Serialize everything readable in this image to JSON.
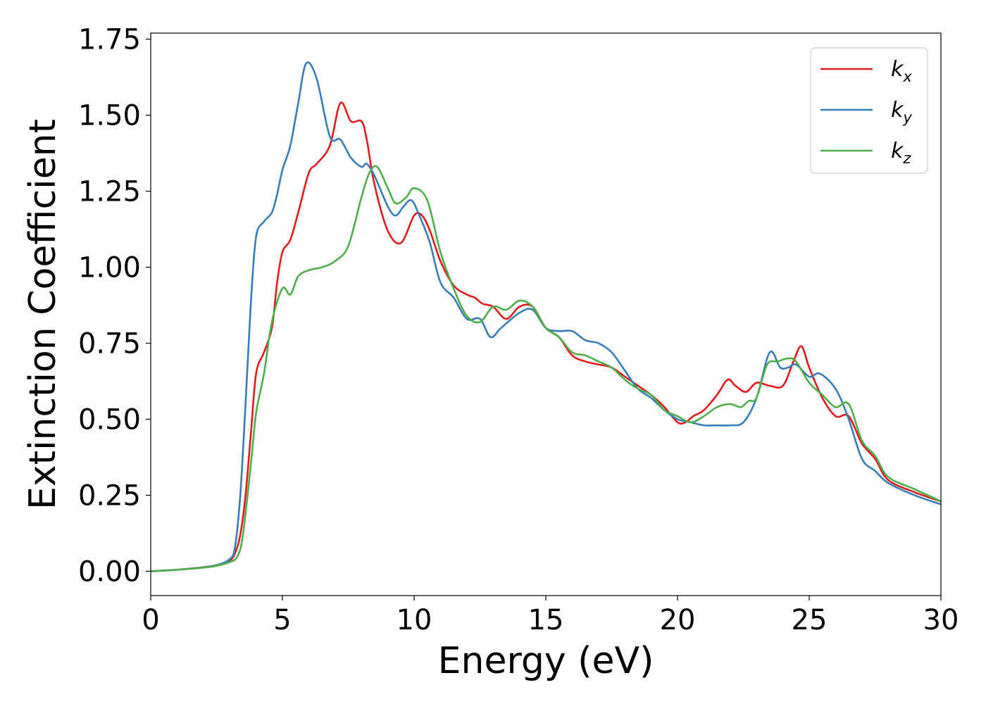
{
  "colors": {
    "kx": "#e41a1c",
    "ky": "#377eb8",
    "kz": "#4daf4a"
  },
  "chart_data": {
    "type": "line",
    "title": "",
    "xlabel": "Energy (eV)",
    "ylabel": "Extinction Coefficient",
    "xlim": [
      0,
      30
    ],
    "ylim": [
      -0.08,
      1.77
    ],
    "xticks": [
      0,
      5,
      10,
      15,
      20,
      25,
      30
    ],
    "xtick_labels": [
      "0",
      "5",
      "10",
      "15",
      "20",
      "25",
      "30"
    ],
    "yticks": [
      0,
      0.25,
      0.5,
      0.75,
      1.0,
      1.25,
      1.5,
      1.75
    ],
    "ytick_labels": [
      "0.00",
      "0.25",
      "0.50",
      "0.75",
      "1.00",
      "1.25",
      "1.50",
      "1.75"
    ],
    "grid": false,
    "legend_position": "top-right",
    "series": [
      {
        "name": "kx",
        "label_base": "k",
        "label_sub": "x",
        "color": "#e41a1c",
        "x": [
          0,
          1,
          2,
          2.5,
          3,
          3.2,
          3.4,
          3.6,
          3.8,
          4,
          4.3,
          4.6,
          4.8,
          5,
          5.3,
          5.6,
          6,
          6.3,
          6.8,
          7.2,
          7.6,
          8,
          8.2,
          8.5,
          9,
          9.5,
          10,
          10.3,
          10.6,
          11,
          11.5,
          12,
          12.3,
          12.6,
          13,
          13.5,
          14,
          14.5,
          15,
          15.5,
          16,
          16.5,
          17,
          17.5,
          18,
          18.5,
          19,
          19.5,
          20,
          20.3,
          20.6,
          21,
          21.5,
          21.9,
          22.2,
          22.6,
          23,
          23.5,
          24,
          24.4,
          24.7,
          25,
          25.5,
          26,
          26.5,
          27,
          27.5,
          28,
          29,
          30
        ],
        "y": [
          0,
          0.005,
          0.013,
          0.02,
          0.035,
          0.06,
          0.12,
          0.25,
          0.45,
          0.65,
          0.72,
          0.8,
          0.95,
          1.05,
          1.09,
          1.18,
          1.31,
          1.34,
          1.4,
          1.54,
          1.48,
          1.48,
          1.42,
          1.27,
          1.12,
          1.08,
          1.17,
          1.17,
          1.12,
          1.02,
          0.94,
          0.91,
          0.9,
          0.88,
          0.87,
          0.83,
          0.87,
          0.87,
          0.8,
          0.77,
          0.71,
          0.69,
          0.68,
          0.67,
          0.64,
          0.61,
          0.58,
          0.54,
          0.49,
          0.49,
          0.51,
          0.53,
          0.58,
          0.63,
          0.61,
          0.59,
          0.62,
          0.61,
          0.61,
          0.69,
          0.74,
          0.67,
          0.57,
          0.51,
          0.51,
          0.42,
          0.37,
          0.3,
          0.26,
          0.23
        ]
      },
      {
        "name": "ky",
        "label_base": "k",
        "label_sub": "y",
        "color": "#377eb8",
        "x": [
          0,
          1,
          2,
          2.5,
          3,
          3.2,
          3.4,
          3.6,
          3.8,
          4,
          4.3,
          4.6,
          4.8,
          5,
          5.3,
          5.6,
          5.9,
          6.3,
          6.8,
          7.2,
          7.6,
          8,
          8.2,
          8.5,
          9,
          9.3,
          9.6,
          9.9,
          10.2,
          10.6,
          11,
          11.5,
          12,
          12.5,
          12.9,
          13.3,
          14,
          14.5,
          15,
          15.5,
          16,
          16.5,
          17,
          17.5,
          18,
          18.5,
          19,
          19.5,
          20,
          20.5,
          21,
          21.5,
          22,
          22.5,
          23,
          23.5,
          23.9,
          24.2,
          24.5,
          25,
          25.4,
          26,
          26.5,
          27,
          27.5,
          28,
          29,
          30
        ],
        "y": [
          0,
          0.005,
          0.013,
          0.02,
          0.04,
          0.08,
          0.25,
          0.55,
          0.88,
          1.1,
          1.15,
          1.18,
          1.24,
          1.32,
          1.4,
          1.54,
          1.67,
          1.62,
          1.43,
          1.42,
          1.36,
          1.33,
          1.34,
          1.3,
          1.2,
          1.17,
          1.2,
          1.22,
          1.17,
          1.08,
          0.95,
          0.9,
          0.83,
          0.83,
          0.77,
          0.8,
          0.85,
          0.86,
          0.8,
          0.79,
          0.79,
          0.76,
          0.75,
          0.72,
          0.66,
          0.6,
          0.57,
          0.53,
          0.5,
          0.49,
          0.48,
          0.48,
          0.48,
          0.49,
          0.57,
          0.72,
          0.67,
          0.67,
          0.68,
          0.64,
          0.65,
          0.6,
          0.5,
          0.37,
          0.33,
          0.29,
          0.25,
          0.22
        ]
      },
      {
        "name": "kz",
        "label_base": "k",
        "label_sub": "z",
        "color": "#4daf4a",
        "x": [
          0,
          1,
          2,
          2.5,
          3,
          3.3,
          3.5,
          3.8,
          4,
          4.3,
          4.6,
          5,
          5.3,
          5.6,
          6,
          6.5,
          7,
          7.5,
          8,
          8.3,
          8.6,
          9,
          9.3,
          9.7,
          10,
          10.5,
          11,
          11.5,
          12,
          12.5,
          13,
          13.5,
          14,
          14.5,
          15,
          15.5,
          16,
          16.5,
          17,
          17.5,
          18,
          18.5,
          19,
          19.5,
          20,
          20.5,
          21,
          21.5,
          22,
          22.4,
          22.7,
          23,
          23.4,
          23.8,
          24.2,
          24.5,
          25,
          25.5,
          26,
          26.5,
          27,
          27.5,
          28,
          29,
          30
        ],
        "y": [
          0,
          0.005,
          0.012,
          0.018,
          0.03,
          0.05,
          0.12,
          0.35,
          0.52,
          0.65,
          0.82,
          0.93,
          0.91,
          0.97,
          0.99,
          1.0,
          1.02,
          1.07,
          1.23,
          1.31,
          1.33,
          1.26,
          1.21,
          1.23,
          1.26,
          1.22,
          1.05,
          0.93,
          0.84,
          0.82,
          0.87,
          0.86,
          0.89,
          0.87,
          0.8,
          0.77,
          0.72,
          0.71,
          0.69,
          0.67,
          0.63,
          0.6,
          0.58,
          0.53,
          0.51,
          0.49,
          0.51,
          0.54,
          0.55,
          0.54,
          0.56,
          0.57,
          0.68,
          0.69,
          0.7,
          0.69,
          0.62,
          0.58,
          0.54,
          0.55,
          0.43,
          0.38,
          0.31,
          0.27,
          0.23
        ]
      }
    ]
  }
}
